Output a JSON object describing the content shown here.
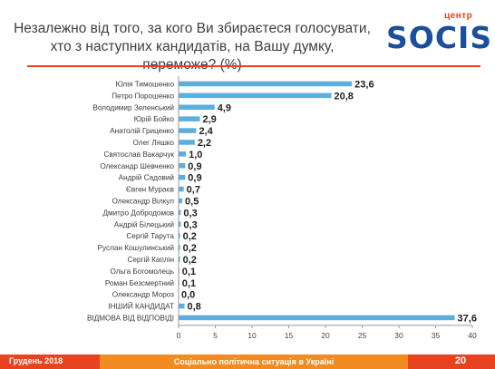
{
  "header": {
    "title": "Незалежно від того, за кого Ви збираєтеся голосувати, хто з наступних кандидатів, на Вашу думку, переможе? (%)",
    "logo_small": "центр",
    "logo_text": "SOCIS"
  },
  "footer": {
    "date": "Грудень 2018",
    "center": "Соціально політична ситуація в Україні",
    "page": "20"
  },
  "colors": {
    "bar": "#5aafdc",
    "accent": "#e8431f",
    "footer_mid": "#f28b22",
    "brand": "#1b4f9c"
  },
  "chart_data": {
    "type": "bar",
    "orientation": "horizontal",
    "categories": [
      "Юлія Тимошенко",
      "Петро Порошенко",
      "Володимир Зеленський",
      "Юрій Бойко",
      "Анатолій Гриценко",
      "Олег Ляшко",
      "Святослав Вакарчук",
      "Олександр Шевченко",
      "Андрій Садовий",
      "Євген Мураєв",
      "Олександр Вілкул",
      "Дмитро Добродомов",
      "Андрій Білецький",
      "Сергій Тарута",
      "Руслан Кошулинський",
      "Сергій Каплін",
      "Ольга Богомолець",
      "Роман Безсмертний",
      "Олександр Мороз",
      "ІНШИЙ КАНДИДАТ",
      "ВІДМОВА ВІД ВІДПОВІДІ"
    ],
    "values": [
      23.6,
      20.8,
      4.9,
      2.9,
      2.4,
      2.2,
      1.0,
      0.9,
      0.9,
      0.7,
      0.5,
      0.3,
      0.3,
      0.2,
      0.2,
      0.2,
      0.1,
      0.1,
      0.0,
      0.8,
      37.6
    ],
    "value_labels": [
      "23,6",
      "20,8",
      "4,9",
      "2,9",
      "2,4",
      "2,2",
      "1,0",
      "0,9",
      "0,9",
      "0,7",
      "0,5",
      "0,3",
      "0,3",
      "0,2",
      "0,2",
      "0,2",
      "0,1",
      "0,1",
      "0,0",
      "0,8",
      "37,6"
    ],
    "xlim": [
      0,
      40
    ],
    "xticks": [
      0,
      5,
      10,
      15,
      20,
      25,
      30,
      35,
      40
    ],
    "grid": false,
    "title": "",
    "xlabel": "",
    "ylabel": ""
  }
}
